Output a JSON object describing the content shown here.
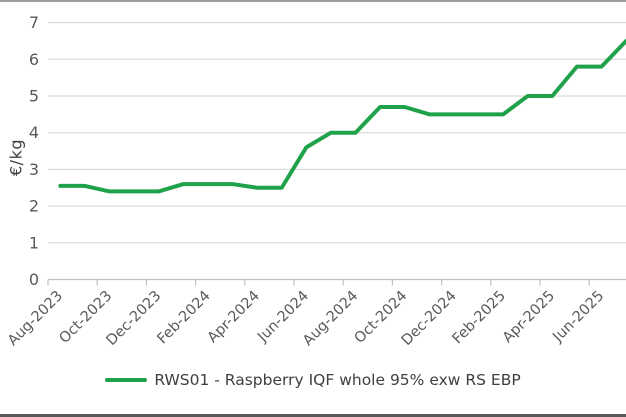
{
  "chart_data": {
    "type": "line",
    "title": "",
    "ylabel": "€/kg",
    "xlabel": "",
    "ylim": [
      0,
      7
    ],
    "yticks": [
      0,
      1,
      2,
      3,
      4,
      5,
      6,
      7
    ],
    "grid": "horizontal",
    "legend_position": "bottom",
    "x": [
      "Aug-2023",
      "Sep-2023",
      "Oct-2023",
      "Nov-2023",
      "Dec-2023",
      "Jan-2024",
      "Feb-2024",
      "Mar-2024",
      "Apr-2024",
      "May-2024",
      "Jun-2024",
      "Jul-2024",
      "Aug-2024",
      "Sep-2024",
      "Oct-2024",
      "Nov-2024",
      "Dec-2024",
      "Jan-2025",
      "Feb-2025",
      "Mar-2025",
      "Apr-2025",
      "May-2025",
      "Jun-2025",
      "Jul-2025"
    ],
    "x_tick_labels": [
      "Aug-2023",
      "Oct-2023",
      "Dec-2023",
      "Feb-2024",
      "Apr-2024",
      "Jun-2024",
      "Aug-2024",
      "Oct-2024",
      "Dec-2024",
      "Feb-2025",
      "Apr-2025",
      "Jun-2025"
    ],
    "series": [
      {
        "name": "RWS01 - Raspberry IQF whole 95% exw RS EBP",
        "color": "#1fa24a",
        "values": [
          2.55,
          2.55,
          2.4,
          2.4,
          2.4,
          2.6,
          2.6,
          2.6,
          2.5,
          2.5,
          3.6,
          4.0,
          4.0,
          4.7,
          4.7,
          4.5,
          4.5,
          4.5,
          4.5,
          5.0,
          5.0,
          5.8,
          5.8,
          6.5
        ]
      }
    ],
    "colors": {
      "line": "#1fa24a",
      "gridline": "#dadada",
      "axis": "#bfbfbf",
      "tick_text": "#595959",
      "axis_title_text": "#3f3f3f",
      "legend_text": "#404040",
      "frame_top": "#9c9ea0",
      "frame_bottom": "#58595b"
    }
  }
}
